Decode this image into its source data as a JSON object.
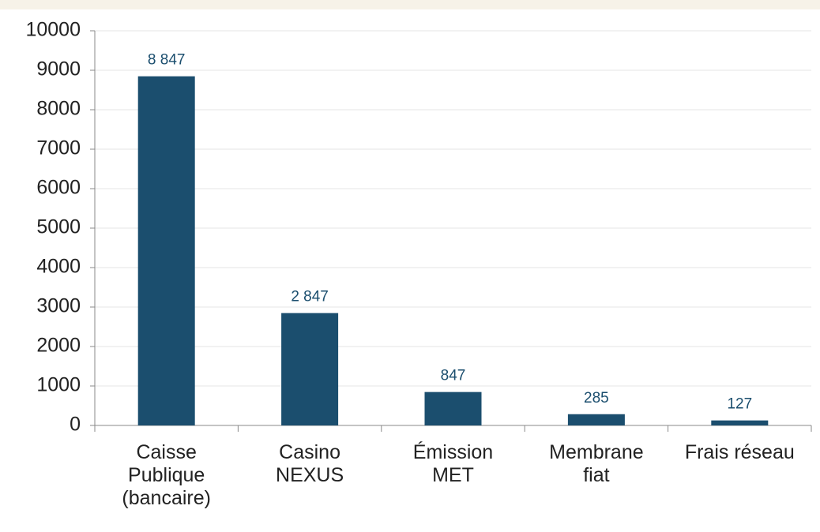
{
  "chart_data": {
    "type": "bar",
    "categories": [
      "Caisse Publique (bancaire)",
      "Casino NEXUS",
      "Émission MET",
      "Membrane fiat",
      "Frais réseau"
    ],
    "values": [
      8847,
      2847,
      847,
      285,
      127
    ],
    "value_labels": [
      "8 847",
      "2 847",
      "847",
      "285",
      "127"
    ],
    "color": "#1b4e6e",
    "ylim": [
      0,
      10000
    ],
    "yticks": [
      0,
      1000,
      2000,
      3000,
      4000,
      5000,
      6000,
      7000,
      8000,
      9000,
      10000
    ],
    "grid": true
  }
}
